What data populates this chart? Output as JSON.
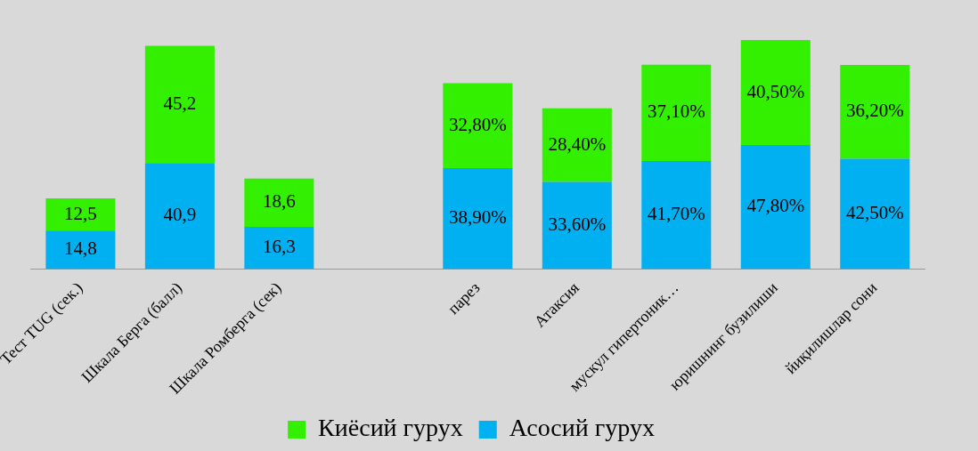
{
  "chart_data": {
    "type": "bar",
    "stacked": true,
    "legend": "bottom",
    "categories": [
      "Тест TUG (сек.)",
      "Шкала Берга (балл)",
      "Шкала Ромберга (сек)",
      null,
      "парез",
      "Атаксия",
      "мускул гипертоник…",
      "юришнинг бузилиши",
      "йиқилишлар сони"
    ],
    "series": [
      {
        "name": "Асосий гурух",
        "color": "#00b0f0",
        "values": [
          14.8,
          40.9,
          16.3,
          null,
          38.9,
          33.6,
          41.7,
          47.8,
          42.5
        ],
        "value_labels": [
          "14,8",
          "40,9",
          "16,3",
          null,
          "38,90%",
          "33,60%",
          "41,70%",
          "47,80%",
          "42,50%"
        ]
      },
      {
        "name": "Киёсий гурух",
        "color": "#33f000",
        "values": [
          12.5,
          45.2,
          18.6,
          null,
          32.8,
          28.4,
          37.1,
          40.5,
          36.2
        ],
        "value_labels": [
          "12,5",
          "45,2",
          "18,6",
          null,
          "32,80%",
          "28,40%",
          "37,10%",
          "40,50%",
          "36,20%"
        ]
      }
    ]
  }
}
